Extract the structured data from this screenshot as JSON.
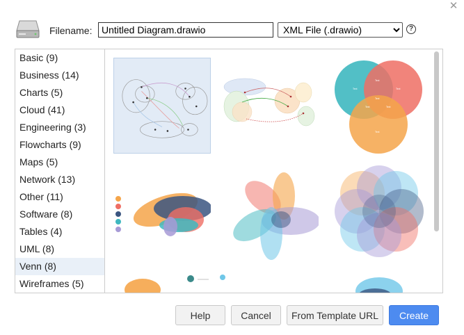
{
  "dialog": {
    "close_glyph": "✕",
    "filename_label": "Filename:",
    "filename_value": "Untitled Diagram.drawio",
    "format_selected": "XML File (.drawio)",
    "help_glyph": "?"
  },
  "categories": [
    {
      "label": "Basic (9)"
    },
    {
      "label": "Business (14)"
    },
    {
      "label": "Charts (5)"
    },
    {
      "label": "Cloud (41)"
    },
    {
      "label": "Engineering (3)"
    },
    {
      "label": "Flowcharts (9)"
    },
    {
      "label": "Maps (5)"
    },
    {
      "label": "Network (13)"
    },
    {
      "label": "Other (11)"
    },
    {
      "label": "Software (8)"
    },
    {
      "label": "Tables (4)"
    },
    {
      "label": "UML (8)"
    },
    {
      "label": "Venn (8)",
      "selected": true
    },
    {
      "label": "Wireframes (5)"
    }
  ],
  "buttons": {
    "help": "Help",
    "cancel": "Cancel",
    "template_url": "From Template URL",
    "create": "Create"
  },
  "colors": {
    "accent": "#4d8bf0",
    "venn_teal": "#3fb8c0",
    "venn_red": "#ef6e64",
    "venn_orange": "#f5a54a",
    "venn_navy": "#3b5580",
    "venn_purple": "#a79ad6"
  }
}
